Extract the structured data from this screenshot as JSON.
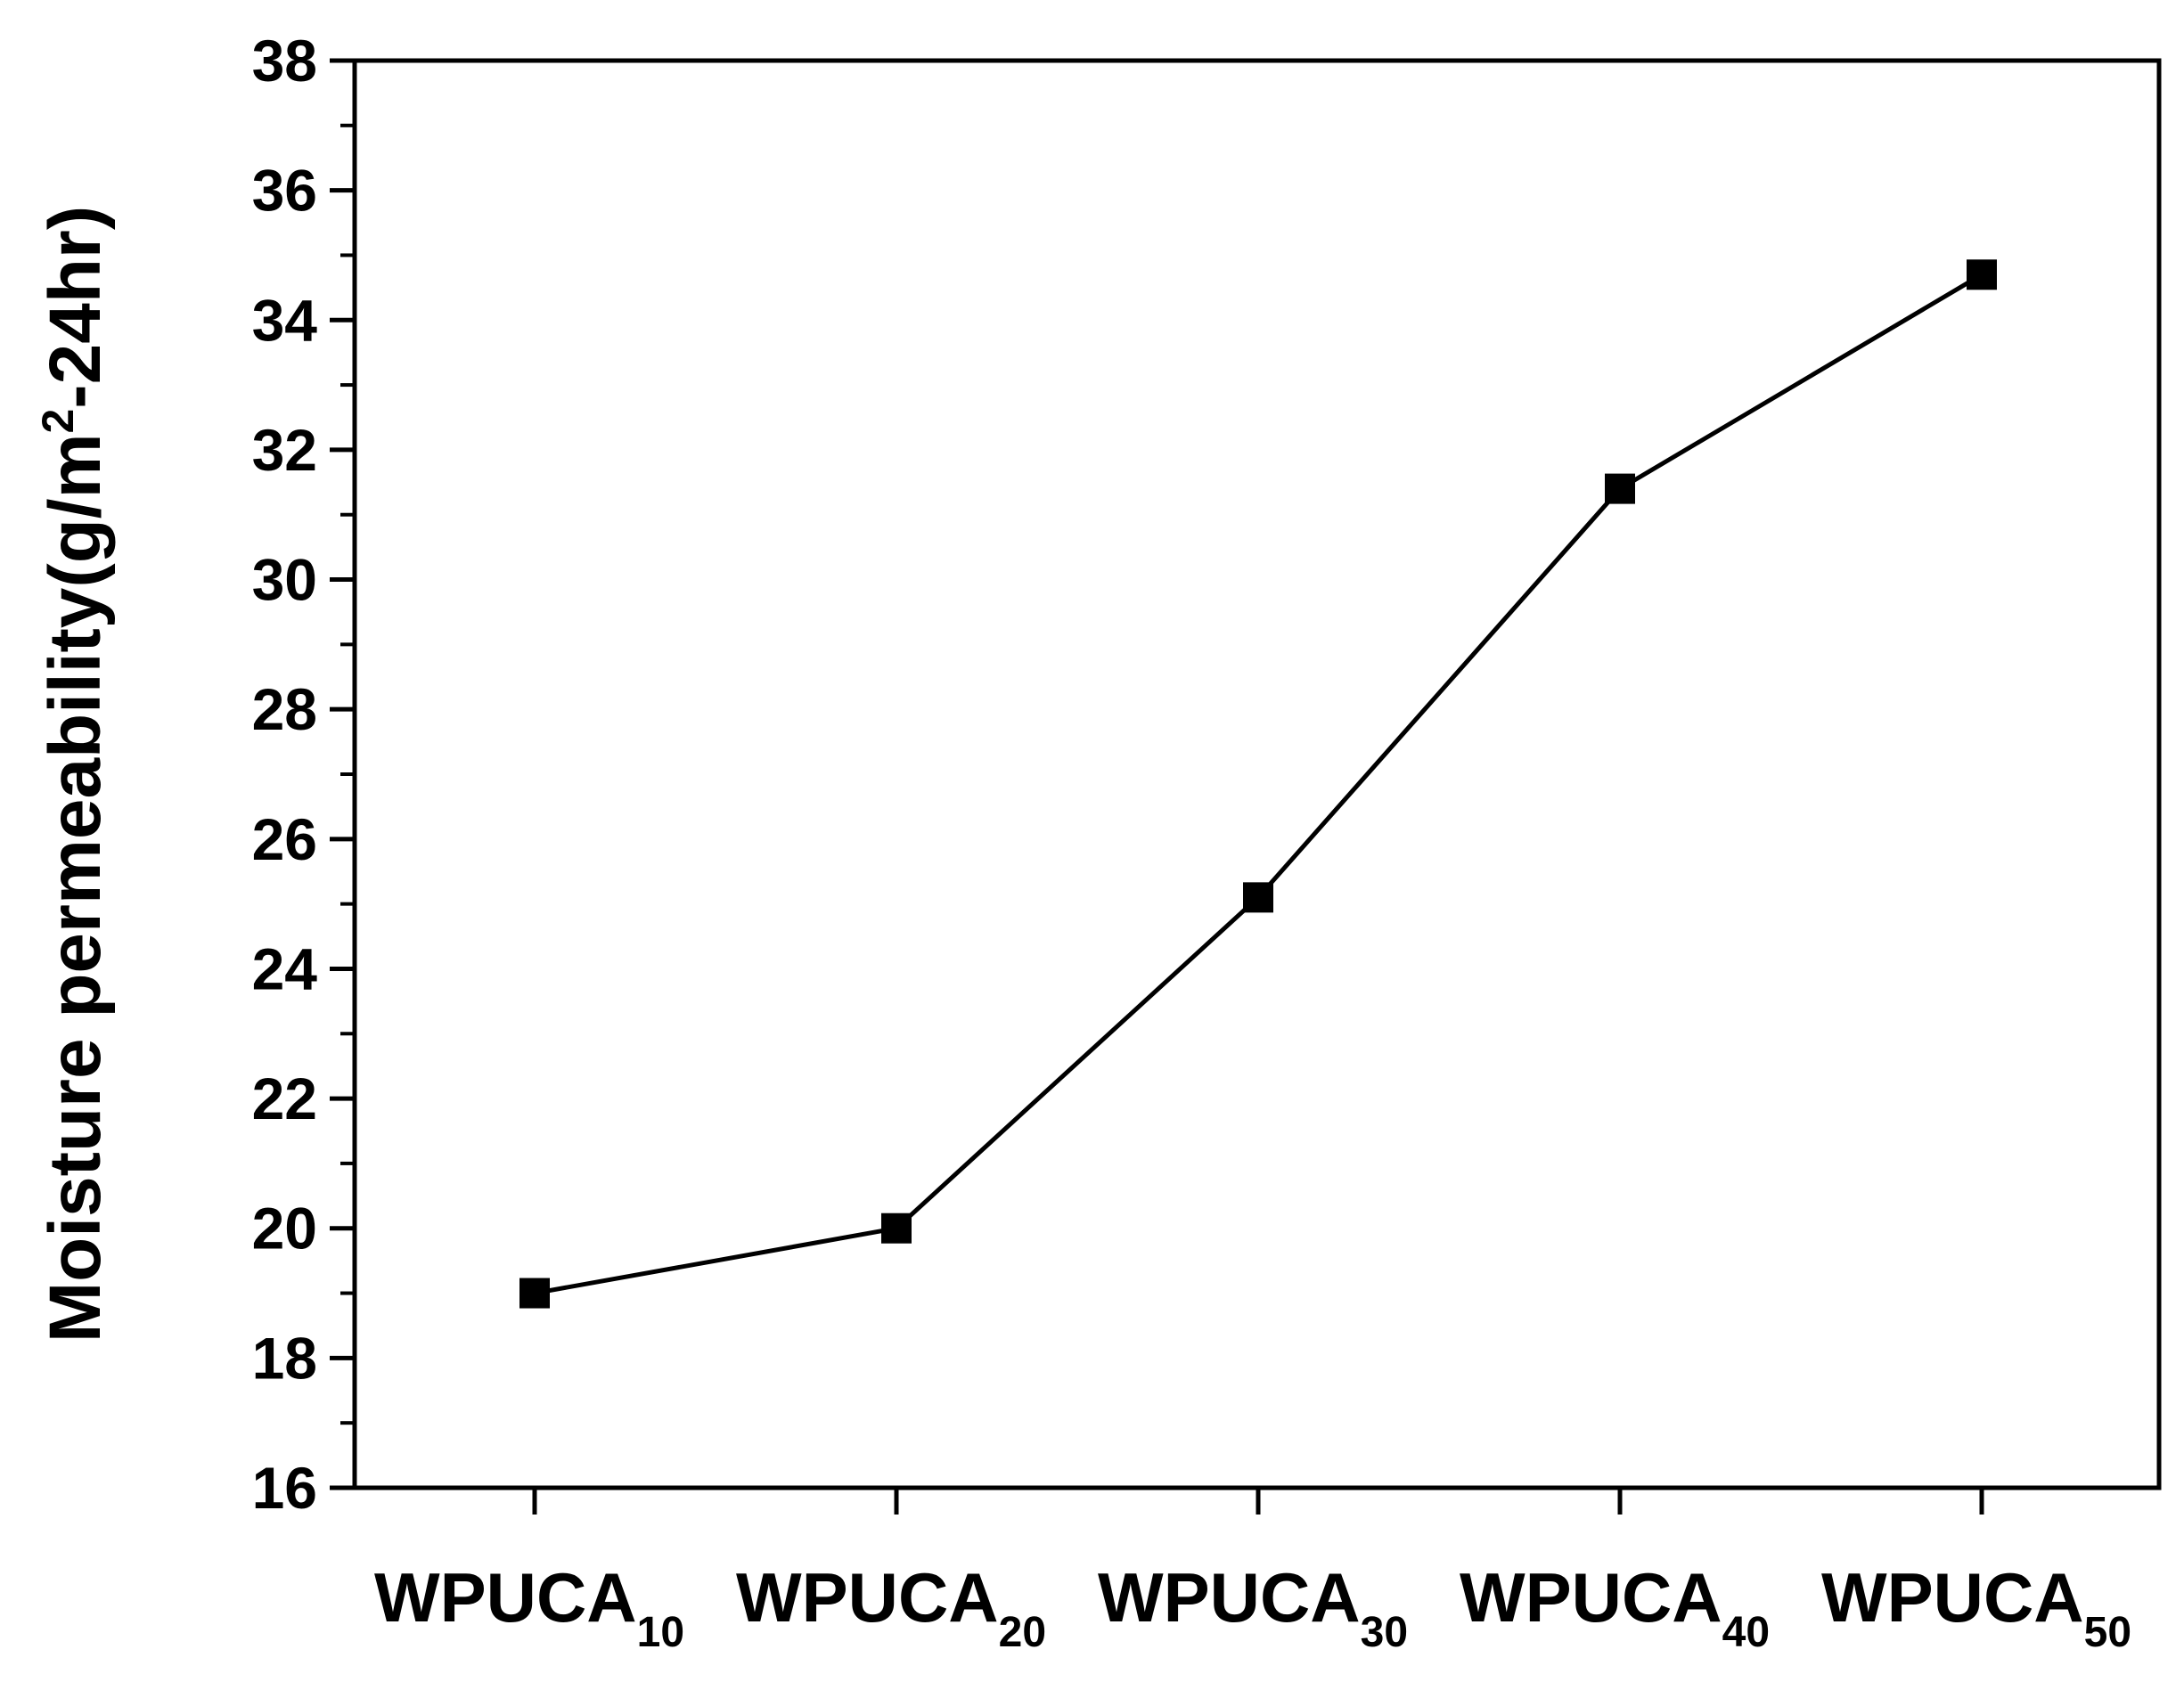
{
  "chart_data": {
    "type": "line",
    "title": "",
    "ylabel": {
      "prefix": "Moisture permeability(g/m",
      "superscript": "2",
      "suffix": "-24hr)"
    },
    "xlabel": "",
    "ylim": [
      16,
      38
    ],
    "yticks": [
      16,
      18,
      20,
      22,
      24,
      26,
      28,
      30,
      32,
      34,
      36,
      38
    ],
    "categories": [
      {
        "base": "WPUCA",
        "sub": "10"
      },
      {
        "base": "WPUCA",
        "sub": "20"
      },
      {
        "base": "WPUCA",
        "sub": "30"
      },
      {
        "base": "WPUCA",
        "sub": "40"
      },
      {
        "base": "WPUCA",
        "sub": "50"
      }
    ],
    "series": [
      {
        "values": [
          19.0,
          20.0,
          25.1,
          31.4,
          34.7
        ],
        "marker": "square",
        "color": "#000000"
      }
    ],
    "grid": false,
    "legend": "none"
  }
}
